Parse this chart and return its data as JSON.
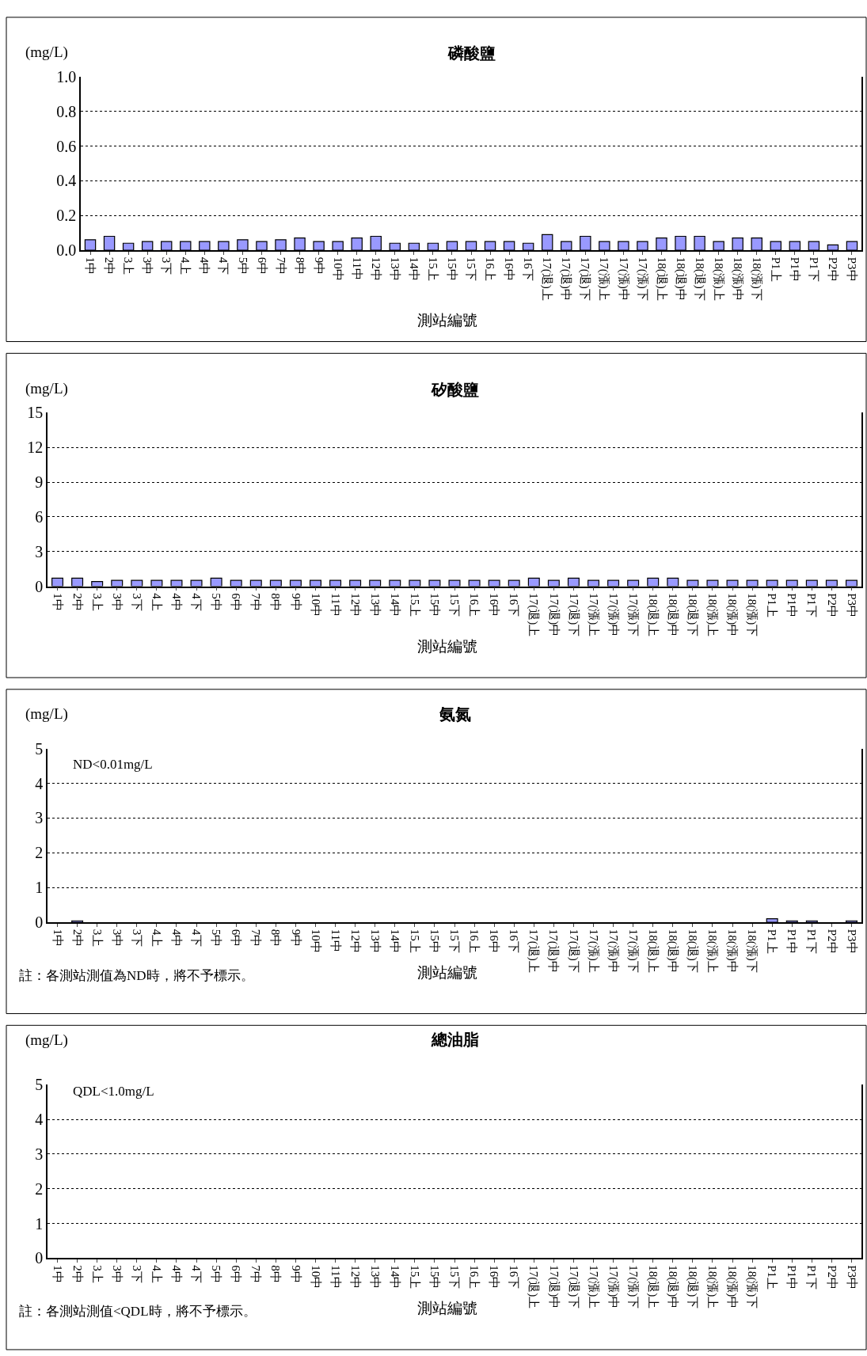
{
  "chart_data": [
    {
      "type": "bar",
      "title": "磷酸鹽",
      "ylabel": "(mg/L)",
      "xlabel": "測站編號",
      "categories": [
        "1中",
        "2中",
        "3上",
        "3中",
        "3下",
        "4上",
        "4中",
        "4下",
        "5中",
        "6中",
        "7中",
        "8中",
        "9中",
        "10中",
        "11中",
        "12中",
        "13中",
        "14中",
        "15上",
        "15中",
        "15下",
        "16上",
        "16中",
        "16下",
        "17(退)上",
        "17(退)中",
        "17(退)下",
        "17(漲)上",
        "17(漲)中",
        "17(漲)下",
        "18(退)上",
        "18(退)中",
        "18(退)下",
        "18(漲)上",
        "18(漲)中",
        "18(漲)下",
        "P1上",
        "P1中",
        "P1下",
        "P2中",
        "P3中"
      ],
      "values": [
        0.06,
        0.08,
        0.04,
        0.05,
        0.05,
        0.05,
        0.05,
        0.05,
        0.06,
        0.05,
        0.06,
        0.07,
        0.05,
        0.05,
        0.07,
        0.08,
        0.04,
        0.04,
        0.04,
        0.05,
        0.05,
        0.05,
        0.05,
        0.04,
        0.09,
        0.05,
        0.08,
        0.05,
        0.05,
        0.05,
        0.07,
        0.08,
        0.08,
        0.05,
        0.07,
        0.07,
        0.05,
        0.05,
        0.05,
        0.03,
        0.05
      ],
      "color": "#9999ff",
      "ylim": [
        0,
        1
      ],
      "yticks": [
        {
          "value": 0,
          "label": "0.0"
        },
        {
          "value": 0.2,
          "label": "0.2"
        },
        {
          "value": 0.4,
          "label": "0.4"
        },
        {
          "value": 0.6,
          "label": "0.6"
        },
        {
          "value": 0.8,
          "label": "0.8"
        },
        {
          "value": 1,
          "label": "1.0"
        }
      ],
      "grid": "y"
    },
    {
      "type": "bar",
      "title": "矽酸鹽",
      "ylabel": "(mg/L)",
      "xlabel": "測站編號",
      "categories": [
        "1中",
        "2中",
        "3上",
        "3中",
        "3下",
        "4上",
        "4中",
        "4下",
        "5中",
        "6中",
        "7中",
        "8中",
        "9中",
        "10中",
        "11中",
        "12中",
        "13中",
        "14中",
        "15上",
        "15中",
        "15下",
        "16上",
        "16中",
        "16下",
        "17(退)上",
        "17(退)中",
        "17(退)下",
        "17(漲)上",
        "17(漲)中",
        "17(漲)下",
        "18(退)上",
        "18(退)中",
        "18(退)下",
        "18(漲)上",
        "18(漲)中",
        "18(漲)下",
        "P1上",
        "P1中",
        "P1下",
        "P2中",
        "P3中"
      ],
      "values": [
        0.7,
        0.7,
        0.4,
        0.5,
        0.5,
        0.5,
        0.5,
        0.5,
        0.7,
        0.5,
        0.5,
        0.5,
        0.5,
        0.5,
        0.5,
        0.5,
        0.5,
        0.5,
        0.5,
        0.5,
        0.5,
        0.5,
        0.5,
        0.5,
        0.7,
        0.5,
        0.7,
        0.5,
        0.5,
        0.5,
        0.7,
        0.7,
        0.5,
        0.5,
        0.5,
        0.5,
        0.5,
        0.5,
        0.5,
        0.5,
        0.5
      ],
      "color": "#9999ff",
      "ylim": [
        0,
        15
      ],
      "yticks": [
        0,
        3,
        6,
        9,
        12,
        15
      ],
      "grid": "y"
    },
    {
      "type": "bar",
      "title": "氨氮",
      "ylabel": "(mg/L)",
      "xlabel": "測站編號",
      "categories": [
        "1中",
        "2中",
        "3上",
        "3中",
        "3下",
        "4上",
        "4中",
        "4下",
        "5中",
        "6中",
        "7中",
        "8中",
        "9中",
        "10中",
        "11中",
        "12中",
        "13中",
        "14中",
        "15上",
        "15中",
        "15下",
        "16上",
        "16中",
        "16下",
        "17(退)上",
        "17(退)中",
        "17(退)下",
        "17(漲)上",
        "17(漲)中",
        "17(漲)下",
        "18(退)上",
        "18(退)中",
        "18(退)下",
        "18(漲)上",
        "18(漲)中",
        "18(漲)下",
        "P1上",
        "P1中",
        "P1下",
        "P2中",
        "P3中"
      ],
      "values": [
        null,
        0.04,
        null,
        null,
        null,
        null,
        null,
        null,
        null,
        null,
        null,
        null,
        null,
        null,
        null,
        null,
        null,
        null,
        null,
        null,
        null,
        null,
        null,
        null,
        null,
        null,
        null,
        null,
        null,
        null,
        null,
        null,
        null,
        null,
        null,
        null,
        0.1,
        0.04,
        0.04,
        null,
        0.04
      ],
      "color": "#9999ff",
      "ylim": [
        0,
        5
      ],
      "yticks": [
        0,
        1,
        2,
        3,
        4,
        5
      ],
      "grid": "y",
      "annotations": [
        "ND<0.01mg/L",
        "註：各測站測值為ND時，將不予標示。"
      ]
    },
    {
      "type": "bar",
      "title": "總油脂",
      "ylabel": "(mg/L)",
      "xlabel": "測站編號",
      "categories": [
        "1中",
        "2中",
        "3上",
        "3中",
        "3下",
        "4上",
        "4中",
        "4下",
        "5中",
        "6中",
        "7中",
        "8中",
        "9中",
        "10中",
        "11中",
        "12中",
        "13中",
        "14中",
        "15上",
        "15中",
        "15下",
        "16上",
        "16中",
        "16下",
        "17(退)上",
        "17(退)中",
        "17(退)下",
        "17(漲)上",
        "17(漲)中",
        "17(漲)下",
        "18(退)上",
        "18(退)中",
        "18(退)下",
        "18(漲)上",
        "18(漲)中",
        "18(漲)下",
        "P1上",
        "P1中",
        "P1下",
        "P2中",
        "P3中"
      ],
      "values": [
        null,
        null,
        null,
        null,
        null,
        null,
        null,
        null,
        null,
        null,
        null,
        null,
        null,
        null,
        null,
        null,
        null,
        null,
        null,
        null,
        null,
        null,
        null,
        null,
        null,
        null,
        null,
        null,
        null,
        null,
        null,
        null,
        null,
        null,
        null,
        null,
        null,
        null,
        null,
        null,
        null
      ],
      "color": "#9999ff",
      "ylim": [
        0,
        5
      ],
      "yticks": [
        0,
        1,
        2,
        3,
        4,
        5
      ],
      "grid": "y",
      "annotations": [
        "QDL<1.0mg/L",
        "註：各測站測值<QDL時，將不予標示。"
      ]
    }
  ]
}
